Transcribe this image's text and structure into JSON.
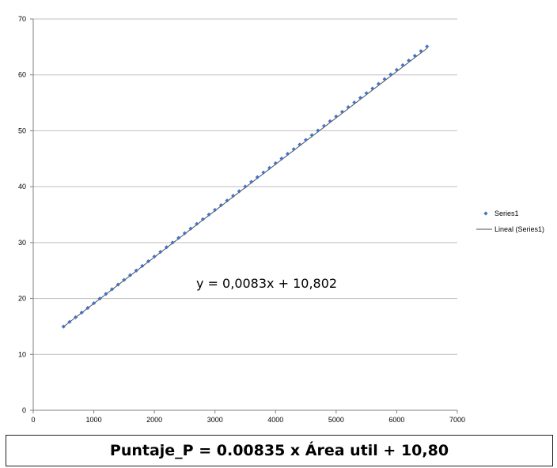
{
  "chart_data": {
    "type": "scatter",
    "title": "",
    "xlabel": "",
    "ylabel": "",
    "xlim": [
      0,
      7000
    ],
    "ylim": [
      0,
      70
    ],
    "x_ticks": [
      0,
      1000,
      2000,
      3000,
      4000,
      5000,
      6000,
      7000
    ],
    "y_ticks": [
      0,
      10,
      20,
      30,
      40,
      50,
      60,
      70
    ],
    "grid": "horizontal",
    "legend_position": "right",
    "series": [
      {
        "name": "Series1",
        "marker": "diamond",
        "color": "#4472C4",
        "x_start": 500,
        "x_end": 6500,
        "x_step": 100,
        "slope": 0.00835,
        "intercept": 10.8,
        "y_first": 15.0,
        "y_last": 65.0
      },
      {
        "name": "Lineal (Series1)",
        "type": "trendline",
        "color": "#4d4d4d",
        "slope": 0.0083,
        "intercept": 10.802
      }
    ],
    "annotation": "y = 0,0083x + 10,802"
  },
  "formula": "Puntaje_P = 0.00835 x Área util + 10,80"
}
